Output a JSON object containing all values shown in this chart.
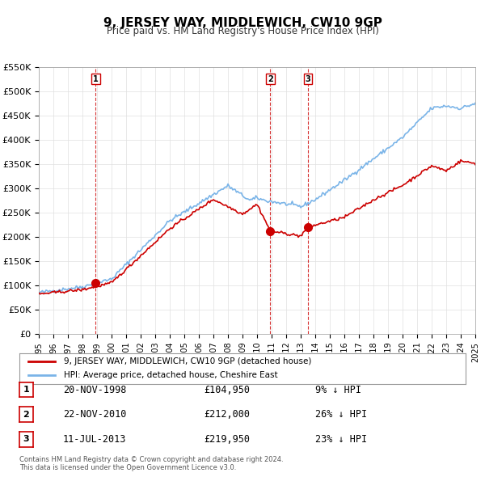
{
  "title": "9, JERSEY WAY, MIDDLEWICH, CW10 9GP",
  "subtitle": "Price paid vs. HM Land Registry's House Price Index (HPI)",
  "xlabel": "",
  "ylabel": "",
  "ylim": [
    0,
    550000
  ],
  "yticks": [
    0,
    50000,
    100000,
    150000,
    200000,
    250000,
    300000,
    350000,
    400000,
    450000,
    500000,
    550000
  ],
  "ytick_labels": [
    "£0",
    "£50K",
    "£100K",
    "£150K",
    "£200K",
    "£250K",
    "£300K",
    "£350K",
    "£400K",
    "£450K",
    "£500K",
    "£550K"
  ],
  "hpi_color": "#7ab4e8",
  "price_color": "#cc0000",
  "sale_marker_color": "#cc0000",
  "vline_color": "#cc0000",
  "background_color": "#ffffff",
  "legend_label_price": "9, JERSEY WAY, MIDDLEWICH, CW10 9GP (detached house)",
  "legend_label_hpi": "HPI: Average price, detached house, Cheshire East",
  "table_entries": [
    {
      "num": "1",
      "date": "20-NOV-1998",
      "price": "£104,950",
      "pct": "9% ↓ HPI",
      "year": 1998.9
    },
    {
      "num": "2",
      "date": "22-NOV-2010",
      "price": "£212,000",
      "pct": "26% ↓ HPI",
      "year": 2010.9
    },
    {
      "num": "3",
      "date": "11-JUL-2013",
      "price": "£219,950",
      "pct": "23% ↓ HPI",
      "year": 2013.5
    }
  ],
  "sale_points": [
    {
      "year": 1998.9,
      "value": 104950
    },
    {
      "year": 2010.9,
      "value": 212000
    },
    {
      "year": 2013.5,
      "value": 219950
    }
  ],
  "footnote": "Contains HM Land Registry data © Crown copyright and database right 2024.\nThis data is licensed under the Open Government Licence v3.0.",
  "xmin": 1995,
  "xmax": 2025
}
